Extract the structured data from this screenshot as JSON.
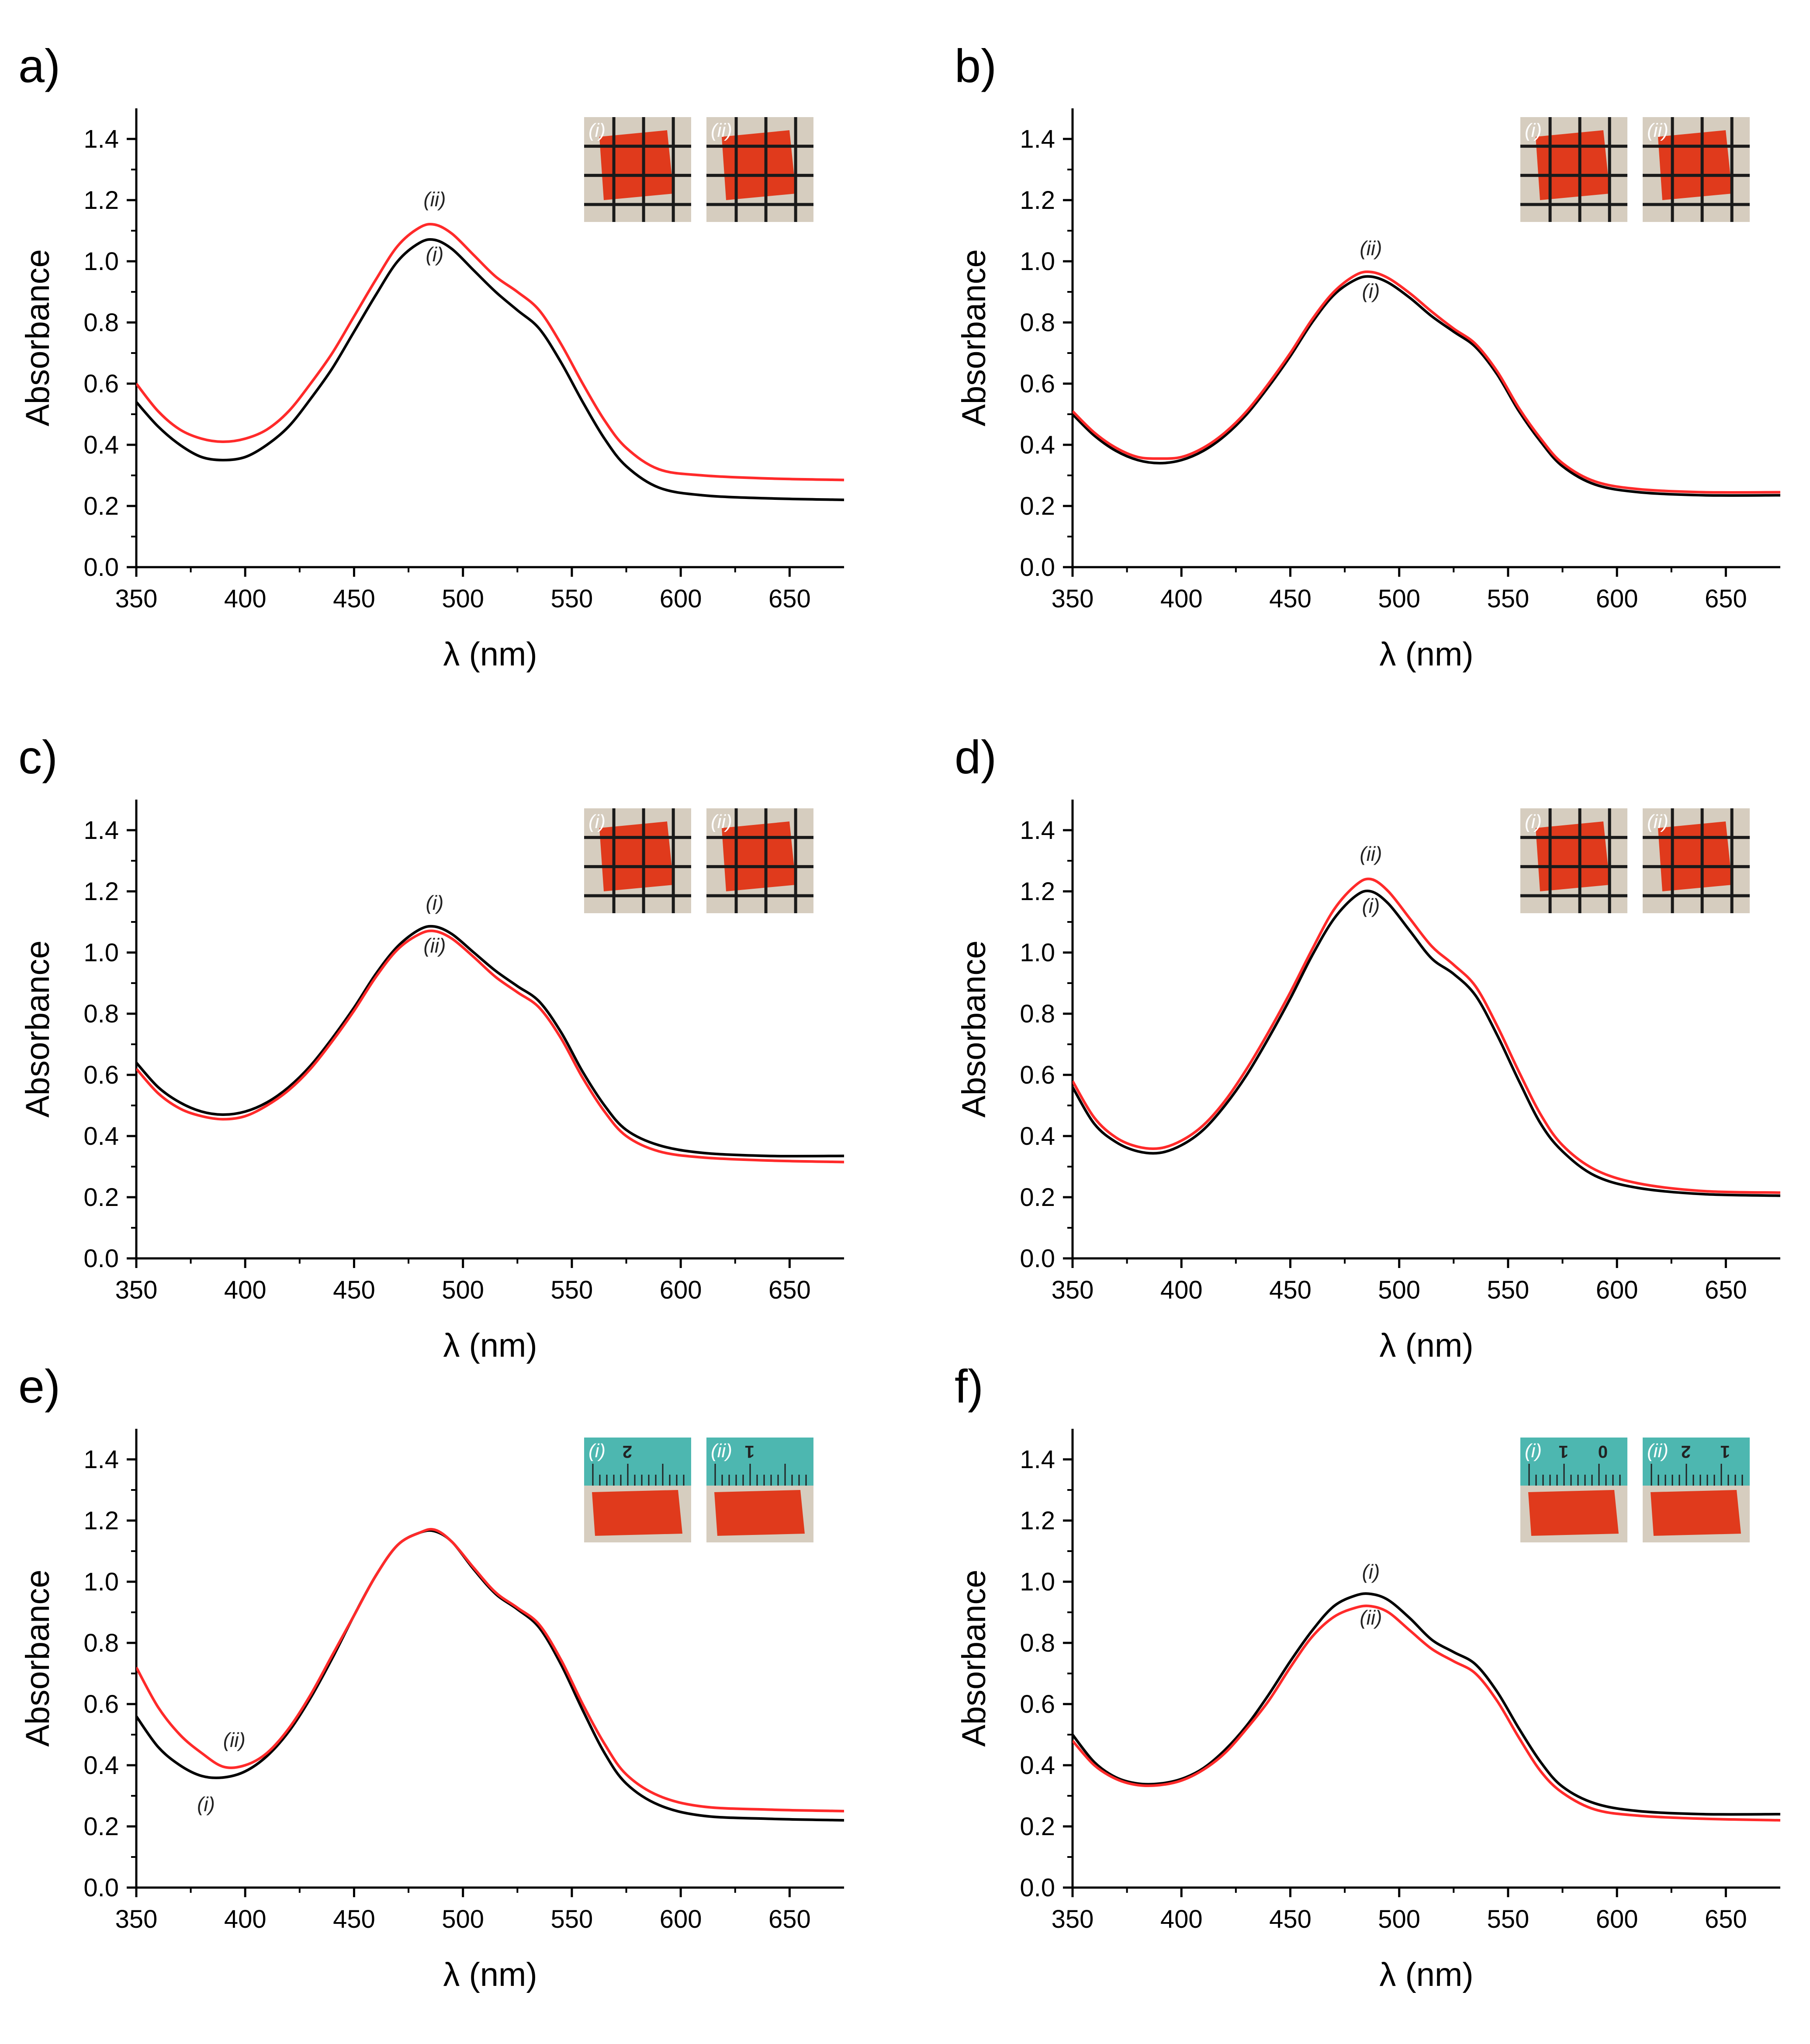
{
  "figure": {
    "curve_colors": {
      "i": "#000000",
      "ii": "#ff2a2a"
    },
    "sample_color": "#e03a1c",
    "photo_bg": "#d6cdbf",
    "ruler_color": "#4db7b0"
  },
  "chart_data": [
    {
      "panel": "a)",
      "type": "line",
      "xlabel": "λ (nm)",
      "ylabel": "Absorbance",
      "xlim": [
        350,
        675
      ],
      "ylim": [
        0.0,
        1.5
      ],
      "xticks": [
        "350",
        "400",
        "450",
        "500",
        "550",
        "600",
        "650"
      ],
      "yticks": [
        "0.0",
        "0.2",
        "0.4",
        "0.6",
        "0.8",
        "1.0",
        "1.2",
        "1.4"
      ],
      "inset": {
        "kind": "grid",
        "labels": [
          "(i)",
          "(ii)"
        ]
      },
      "annotations": [
        {
          "text": "(ii)",
          "x": 487,
          "y": 1.18
        },
        {
          "text": "(i)",
          "x": 487,
          "y": 1.0
        }
      ],
      "series": [
        {
          "name": "(i)",
          "color_key": "i",
          "x": [
            350,
            360,
            370,
            380,
            390,
            400,
            410,
            420,
            430,
            440,
            450,
            460,
            470,
            480,
            487,
            495,
            505,
            515,
            525,
            535,
            545,
            555,
            565,
            575,
            590,
            610,
            640,
            675
          ],
          "y": [
            0.54,
            0.46,
            0.4,
            0.36,
            0.35,
            0.36,
            0.4,
            0.46,
            0.55,
            0.65,
            0.77,
            0.89,
            1.0,
            1.06,
            1.07,
            1.04,
            0.97,
            0.9,
            0.84,
            0.78,
            0.67,
            0.54,
            0.42,
            0.33,
            0.26,
            0.235,
            0.225,
            0.22
          ]
        },
        {
          "name": "(ii)",
          "color_key": "ii",
          "x": [
            350,
            360,
            370,
            380,
            390,
            400,
            410,
            420,
            430,
            440,
            450,
            460,
            470,
            480,
            487,
            495,
            505,
            515,
            525,
            535,
            545,
            555,
            565,
            575,
            590,
            610,
            640,
            675
          ],
          "y": [
            0.6,
            0.51,
            0.45,
            0.42,
            0.41,
            0.42,
            0.45,
            0.51,
            0.6,
            0.7,
            0.82,
            0.94,
            1.05,
            1.11,
            1.12,
            1.09,
            1.02,
            0.95,
            0.9,
            0.84,
            0.73,
            0.6,
            0.48,
            0.39,
            0.32,
            0.3,
            0.29,
            0.285
          ]
        }
      ]
    },
    {
      "panel": "b)",
      "type": "line",
      "xlabel": "λ (nm)",
      "ylabel": "Absorbance",
      "xlim": [
        350,
        675
      ],
      "ylim": [
        0.0,
        1.5
      ],
      "xticks": [
        "350",
        "400",
        "450",
        "500",
        "550",
        "600",
        "650"
      ],
      "yticks": [
        "0.0",
        "0.2",
        "0.4",
        "0.6",
        "0.8",
        "1.0",
        "1.2",
        "1.4"
      ],
      "inset": {
        "kind": "grid",
        "labels": [
          "(i)",
          "(ii)"
        ]
      },
      "annotations": [
        {
          "text": "(ii)",
          "x": 487,
          "y": 1.02
        },
        {
          "text": "(i)",
          "x": 487,
          "y": 0.88
        }
      ],
      "series": [
        {
          "name": "(i)",
          "color_key": "i",
          "x": [
            350,
            360,
            370,
            380,
            390,
            400,
            410,
            420,
            430,
            440,
            450,
            460,
            470,
            480,
            487,
            495,
            505,
            515,
            525,
            535,
            545,
            555,
            565,
            575,
            590,
            610,
            640,
            675
          ],
          "y": [
            0.5,
            0.43,
            0.38,
            0.35,
            0.34,
            0.35,
            0.38,
            0.43,
            0.5,
            0.59,
            0.69,
            0.8,
            0.89,
            0.94,
            0.95,
            0.93,
            0.88,
            0.82,
            0.77,
            0.72,
            0.63,
            0.51,
            0.41,
            0.33,
            0.27,
            0.245,
            0.235,
            0.235
          ]
        },
        {
          "name": "(ii)",
          "color_key": "ii",
          "x": [
            350,
            360,
            370,
            380,
            390,
            400,
            410,
            420,
            430,
            440,
            450,
            460,
            470,
            480,
            487,
            495,
            505,
            515,
            525,
            535,
            545,
            555,
            565,
            575,
            590,
            610,
            640,
            675
          ],
          "y": [
            0.51,
            0.44,
            0.39,
            0.36,
            0.355,
            0.36,
            0.39,
            0.44,
            0.51,
            0.6,
            0.7,
            0.81,
            0.9,
            0.955,
            0.965,
            0.945,
            0.895,
            0.835,
            0.78,
            0.73,
            0.64,
            0.52,
            0.42,
            0.34,
            0.28,
            0.255,
            0.245,
            0.245
          ]
        }
      ]
    },
    {
      "panel": "c)",
      "type": "line",
      "xlabel": "λ (nm)",
      "ylabel": "Absorbance",
      "xlim": [
        350,
        675
      ],
      "ylim": [
        0.0,
        1.5
      ],
      "xticks": [
        "350",
        "400",
        "450",
        "500",
        "550",
        "600",
        "650"
      ],
      "yticks": [
        "0.0",
        "0.2",
        "0.4",
        "0.6",
        "0.8",
        "1.0",
        "1.2",
        "1.4"
      ],
      "inset": {
        "kind": "grid",
        "labels": [
          "(i)",
          "(ii)"
        ]
      },
      "annotations": [
        {
          "text": "(i)",
          "x": 487,
          "y": 1.14
        },
        {
          "text": "(ii)",
          "x": 487,
          "y": 1.0
        }
      ],
      "series": [
        {
          "name": "(i)",
          "color_key": "i",
          "x": [
            350,
            360,
            370,
            380,
            390,
            400,
            410,
            420,
            430,
            440,
            450,
            460,
            470,
            480,
            487,
            495,
            505,
            515,
            525,
            535,
            545,
            555,
            565,
            575,
            590,
            610,
            640,
            675
          ],
          "y": [
            0.64,
            0.56,
            0.51,
            0.48,
            0.47,
            0.48,
            0.51,
            0.56,
            0.63,
            0.72,
            0.82,
            0.93,
            1.02,
            1.075,
            1.085,
            1.06,
            1.0,
            0.94,
            0.89,
            0.84,
            0.74,
            0.61,
            0.5,
            0.42,
            0.37,
            0.345,
            0.335,
            0.335
          ]
        },
        {
          "name": "(ii)",
          "color_key": "ii",
          "x": [
            350,
            360,
            370,
            380,
            390,
            400,
            410,
            420,
            430,
            440,
            450,
            460,
            470,
            480,
            487,
            495,
            505,
            515,
            525,
            535,
            545,
            555,
            565,
            575,
            590,
            610,
            640,
            675
          ],
          "y": [
            0.62,
            0.54,
            0.49,
            0.465,
            0.455,
            0.465,
            0.5,
            0.55,
            0.62,
            0.71,
            0.81,
            0.92,
            1.01,
            1.06,
            1.07,
            1.045,
            0.985,
            0.92,
            0.87,
            0.82,
            0.72,
            0.59,
            0.48,
            0.4,
            0.35,
            0.33,
            0.32,
            0.315
          ]
        }
      ]
    },
    {
      "panel": "d)",
      "type": "line",
      "xlabel": "λ (nm)",
      "ylabel": "Absorbance",
      "xlim": [
        350,
        675
      ],
      "ylim": [
        0.0,
        1.5
      ],
      "xticks": [
        "350",
        "400",
        "450",
        "500",
        "550",
        "600",
        "650"
      ],
      "yticks": [
        "0.0",
        "0.2",
        "0.4",
        "0.6",
        "0.8",
        "1.0",
        "1.2",
        "1.4"
      ],
      "inset": {
        "kind": "grid",
        "labels": [
          "(i)",
          "(ii)"
        ]
      },
      "annotations": [
        {
          "text": "(ii)",
          "x": 487,
          "y": 1.3
        },
        {
          "text": "(i)",
          "x": 487,
          "y": 1.13
        }
      ],
      "series": [
        {
          "name": "(i)",
          "color_key": "i",
          "x": [
            350,
            360,
            370,
            380,
            390,
            400,
            410,
            420,
            430,
            440,
            450,
            460,
            470,
            480,
            487,
            495,
            505,
            515,
            525,
            535,
            545,
            555,
            565,
            575,
            590,
            610,
            640,
            675
          ],
          "y": [
            0.56,
            0.44,
            0.38,
            0.35,
            0.345,
            0.37,
            0.42,
            0.5,
            0.6,
            0.72,
            0.85,
            0.99,
            1.11,
            1.185,
            1.2,
            1.16,
            1.07,
            0.98,
            0.93,
            0.86,
            0.73,
            0.58,
            0.44,
            0.35,
            0.27,
            0.23,
            0.21,
            0.205
          ]
        },
        {
          "name": "(ii)",
          "color_key": "ii",
          "x": [
            350,
            360,
            370,
            380,
            390,
            400,
            410,
            420,
            430,
            440,
            450,
            460,
            470,
            480,
            487,
            495,
            505,
            515,
            525,
            535,
            545,
            555,
            565,
            575,
            590,
            610,
            640,
            675
          ],
          "y": [
            0.58,
            0.46,
            0.395,
            0.365,
            0.36,
            0.385,
            0.435,
            0.515,
            0.62,
            0.74,
            0.87,
            1.01,
            1.14,
            1.22,
            1.24,
            1.2,
            1.11,
            1.02,
            0.96,
            0.89,
            0.76,
            0.61,
            0.47,
            0.37,
            0.29,
            0.245,
            0.22,
            0.215
          ]
        }
      ]
    },
    {
      "panel": "e)",
      "type": "line",
      "xlabel": "λ (nm)",
      "ylabel": "Absorbance",
      "xlim": [
        350,
        675
      ],
      "ylim": [
        0.0,
        1.5
      ],
      "xticks": [
        "350",
        "400",
        "450",
        "500",
        "550",
        "600",
        "650"
      ],
      "yticks": [
        "0.0",
        "0.2",
        "0.4",
        "0.6",
        "0.8",
        "1.0",
        "1.2",
        "1.4"
      ],
      "inset": {
        "kind": "ruler",
        "labels": [
          "(i)",
          "(ii)"
        ],
        "ruler_marks": [
          "2",
          "1"
        ]
      },
      "annotations": [
        {
          "text": "(ii)",
          "x": 395,
          "y": 0.46
        },
        {
          "text": "(i)",
          "x": 382,
          "y": 0.25
        }
      ],
      "series": [
        {
          "name": "(i)",
          "color_key": "i",
          "x": [
            350,
            360,
            370,
            380,
            390,
            400,
            410,
            420,
            430,
            440,
            450,
            460,
            470,
            480,
            487,
            495,
            505,
            515,
            525,
            535,
            545,
            555,
            565,
            575,
            590,
            610,
            640,
            675
          ],
          "y": [
            0.56,
            0.46,
            0.4,
            0.365,
            0.36,
            0.38,
            0.43,
            0.51,
            0.62,
            0.75,
            0.89,
            1.02,
            1.12,
            1.16,
            1.165,
            1.13,
            1.04,
            0.96,
            0.91,
            0.85,
            0.73,
            0.58,
            0.44,
            0.34,
            0.27,
            0.235,
            0.225,
            0.22
          ]
        },
        {
          "name": "(ii)",
          "color_key": "ii",
          "x": [
            350,
            360,
            370,
            380,
            390,
            400,
            410,
            420,
            430,
            440,
            450,
            460,
            470,
            480,
            487,
            495,
            505,
            515,
            525,
            535,
            545,
            555,
            565,
            575,
            590,
            610,
            640,
            675
          ],
          "y": [
            0.72,
            0.59,
            0.5,
            0.44,
            0.395,
            0.4,
            0.44,
            0.52,
            0.63,
            0.76,
            0.89,
            1.02,
            1.12,
            1.16,
            1.17,
            1.13,
            1.045,
            0.965,
            0.915,
            0.86,
            0.745,
            0.6,
            0.47,
            0.37,
            0.3,
            0.265,
            0.255,
            0.25
          ]
        }
      ]
    },
    {
      "panel": "f)",
      "type": "line",
      "xlabel": "λ (nm)",
      "ylabel": "Absorbance",
      "xlim": [
        350,
        675
      ],
      "ylim": [
        0.0,
        1.5
      ],
      "xticks": [
        "350",
        "400",
        "450",
        "500",
        "550",
        "600",
        "650"
      ],
      "yticks": [
        "0.0",
        "0.2",
        "0.4",
        "0.6",
        "0.8",
        "1.0",
        "1.2",
        "1.4"
      ],
      "inset": {
        "kind": "ruler",
        "labels": [
          "(i)",
          "(ii)"
        ],
        "ruler_marks": [
          "1",
          "0",
          "2",
          "1"
        ]
      },
      "annotations": [
        {
          "text": "(i)",
          "x": 487,
          "y": 1.01
        },
        {
          "text": "(ii)",
          "x": 487,
          "y": 0.86
        }
      ],
      "series": [
        {
          "name": "(i)",
          "color_key": "i",
          "x": [
            350,
            360,
            370,
            380,
            390,
            400,
            410,
            420,
            430,
            440,
            450,
            460,
            470,
            480,
            487,
            495,
            505,
            515,
            525,
            535,
            545,
            555,
            565,
            575,
            590,
            610,
            640,
            675
          ],
          "y": [
            0.5,
            0.41,
            0.36,
            0.34,
            0.34,
            0.355,
            0.39,
            0.45,
            0.53,
            0.63,
            0.74,
            0.84,
            0.92,
            0.955,
            0.96,
            0.94,
            0.88,
            0.81,
            0.77,
            0.73,
            0.64,
            0.52,
            0.41,
            0.33,
            0.275,
            0.25,
            0.24,
            0.24
          ]
        },
        {
          "name": "(ii)",
          "color_key": "ii",
          "x": [
            350,
            360,
            370,
            380,
            390,
            400,
            410,
            420,
            430,
            440,
            450,
            460,
            470,
            480,
            487,
            495,
            505,
            515,
            525,
            535,
            545,
            555,
            565,
            575,
            590,
            610,
            640,
            675
          ],
          "y": [
            0.48,
            0.4,
            0.355,
            0.335,
            0.335,
            0.35,
            0.385,
            0.44,
            0.52,
            0.61,
            0.72,
            0.82,
            0.885,
            0.915,
            0.92,
            0.9,
            0.84,
            0.78,
            0.74,
            0.7,
            0.61,
            0.49,
            0.38,
            0.31,
            0.255,
            0.235,
            0.225,
            0.22
          ]
        }
      ]
    }
  ]
}
